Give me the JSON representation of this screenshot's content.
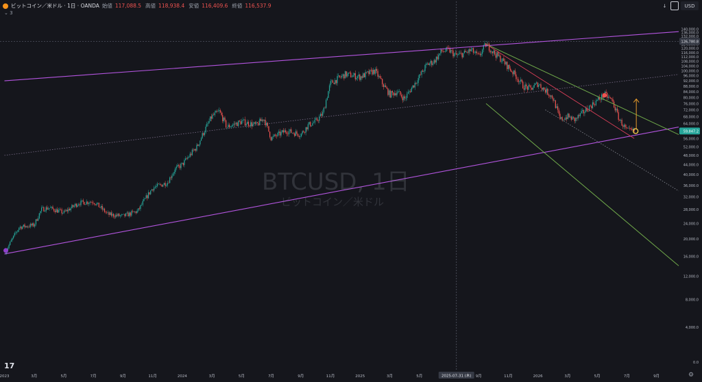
{
  "header": {
    "symbol_icon": "bitcoin-icon",
    "title": "ビットコイン／米ドル · 1日 · OANDA",
    "ohlc": [
      {
        "label": "始値",
        "value": "117,088.5"
      },
      {
        "label": "高値",
        "value": "118,938.4"
      },
      {
        "label": "安値",
        "value": "116,409.6"
      },
      {
        "label": "終値",
        "value": "116,537.9"
      }
    ],
    "indicator_count": "3"
  },
  "toolbar": {
    "arrow_icon": "arrow-down-icon",
    "box_icon": "square-icon",
    "currency": "USD"
  },
  "watermark": {
    "title": "BTCUSD, 1日",
    "subtitle": "ビットコイン／米ドル"
  },
  "logo": "17",
  "settings_icon": "gear-icon",
  "colors": {
    "bg": "#15161c",
    "up": "#26a69a",
    "down": "#ef5350",
    "channel": "#b455e0",
    "green_channel": "#6fa84a",
    "red_line": "#e0405a",
    "arrow": "#e79a2b"
  },
  "chart_data": {
    "type": "candlestick",
    "title": "BTCUSD, 1日",
    "y_scale": "log",
    "ylim": [
      0,
      144000
    ],
    "y_ticks": [
      0,
      4000,
      8000,
      12000,
      16000,
      20000,
      24000,
      28000,
      32000,
      36000,
      40000,
      44000,
      48000,
      52000,
      56000,
      60000,
      64000,
      68000,
      72000,
      76000,
      80000,
      84000,
      88000,
      92000,
      96000,
      100000,
      104000,
      108000,
      112000,
      116000,
      120000,
      124000,
      128000,
      132000,
      136000,
      140000
    ],
    "y_tick_labels": [
      "0.0",
      "4,000.0",
      "8,000.0",
      "12,000.0",
      "16,000.0",
      "20,000.0",
      "24,000.0",
      "28,000.0",
      "32,000.0",
      "36,000.0",
      "40,000.0",
      "44,000.0",
      "48,000.0",
      "52,000.0",
      "56,000.0",
      "60,000.0",
      "64,000.0",
      "68,000.0",
      "72,000.0",
      "76,000.0",
      "80,000.0",
      "84,000.0",
      "88,000.0",
      "92,000.0",
      "96,000.0",
      "100,000.0",
      "104,000.0",
      "108,000.0",
      "112,000.0",
      "116,000.0",
      "120,000.0",
      "124,000.0",
      "128,000.0",
      "132,000.0",
      "136,000.0",
      "140,000.0"
    ],
    "x_ticks": [
      {
        "t": 0,
        "label": "2023"
      },
      {
        "t": 4,
        "label": "3月"
      },
      {
        "t": 8,
        "label": "5月"
      },
      {
        "t": 12,
        "label": "7月"
      },
      {
        "t": 16,
        "label": "9月"
      },
      {
        "t": 20,
        "label": "11月"
      },
      {
        "t": 24,
        "label": "2024"
      },
      {
        "t": 28,
        "label": "3月"
      },
      {
        "t": 32,
        "label": "5月"
      },
      {
        "t": 36,
        "label": "7月"
      },
      {
        "t": 40,
        "label": "9月"
      },
      {
        "t": 44,
        "label": "11月"
      },
      {
        "t": 48,
        "label": "2025"
      },
      {
        "t": 52,
        "label": "3月"
      },
      {
        "t": 56,
        "label": "5月"
      },
      {
        "t": 64,
        "label": "9月"
      },
      {
        "t": 68,
        "label": "11月"
      },
      {
        "t": 72,
        "label": "2026"
      },
      {
        "t": 76,
        "label": "3月"
      },
      {
        "t": 80,
        "label": "5月"
      },
      {
        "t": 84,
        "label": "7月"
      },
      {
        "t": 88,
        "label": "9月"
      }
    ],
    "crosshair": {
      "t": 61,
      "label": "2025-07-31 (木)",
      "price": 126780.8,
      "price_label": "126,780.8"
    },
    "last_price": {
      "value": 59847.2,
      "label": "59,847.2"
    },
    "path": [
      [
        0,
        16500
      ],
      [
        2,
        23000
      ],
      [
        4,
        23500
      ],
      [
        5,
        28000
      ],
      [
        6,
        28500
      ],
      [
        8,
        27000
      ],
      [
        10,
        30000
      ],
      [
        12,
        30500
      ],
      [
        14,
        26500
      ],
      [
        16,
        26000
      ],
      [
        18,
        27500
      ],
      [
        20,
        35000
      ],
      [
        22,
        37000
      ],
      [
        23,
        42000
      ],
      [
        24,
        44000
      ],
      [
        26,
        52000
      ],
      [
        28,
        68000
      ],
      [
        29,
        71000
      ],
      [
        30,
        62000
      ],
      [
        32,
        65000
      ],
      [
        34,
        63000
      ],
      [
        35,
        67000
      ],
      [
        36,
        56000
      ],
      [
        38,
        60000
      ],
      [
        40,
        58000
      ],
      [
        41,
        63000
      ],
      [
        42,
        65000
      ],
      [
        43,
        70000
      ],
      [
        44,
        90000
      ],
      [
        46,
        97000
      ],
      [
        48,
        95000
      ],
      [
        50,
        100000
      ],
      [
        51,
        90000
      ],
      [
        52,
        82000
      ],
      [
        53,
        84000
      ],
      [
        54,
        79000
      ],
      [
        56,
        95000
      ],
      [
        57,
        105000
      ],
      [
        58,
        108000
      ],
      [
        59,
        117000
      ],
      [
        60,
        118000
      ],
      [
        61,
        113000
      ],
      [
        62,
        115000
      ],
      [
        63,
        118000
      ],
      [
        64,
        112000
      ],
      [
        65,
        124000
      ],
      [
        66,
        116000
      ],
      [
        67,
        110000
      ],
      [
        68,
        103000
      ],
      [
        69,
        96000
      ],
      [
        70,
        88000
      ],
      [
        71,
        86000
      ],
      [
        72,
        90000
      ],
      [
        73,
        85000
      ],
      [
        74,
        80000
      ],
      [
        75,
        66000
      ],
      [
        76,
        68000
      ],
      [
        77,
        66000
      ],
      [
        78,
        70000
      ],
      [
        79,
        74000
      ],
      [
        80,
        78000
      ],
      [
        81,
        82000
      ],
      [
        82,
        78000
      ],
      [
        83,
        66000
      ],
      [
        84,
        60000
      ],
      [
        85,
        59800
      ]
    ],
    "annotations": {
      "purple_channel_upper": [
        [
          0,
          92000
        ],
        [
          91,
          137000
        ]
      ],
      "purple_channel_lower": [
        [
          0,
          16500
        ],
        [
          91,
          62000
        ]
      ],
      "dotted_mid_1": [
        [
          0,
          48000
        ],
        [
          91,
          97000
        ]
      ],
      "green_channel_upper": [
        [
          65,
          124000
        ],
        [
          91,
          58000
        ]
      ],
      "green_channel_lower": [
        [
          65,
          76000
        ],
        [
          91,
          14000
        ]
      ],
      "red_trend": [
        [
          65,
          124000
        ],
        [
          85,
          56000
        ]
      ],
      "dotted_projection": [
        [
          73,
          72000
        ],
        [
          91,
          34000
        ]
      ],
      "arrow": [
        [
          85,
          60000
        ],
        [
          85,
          79000
        ]
      ],
      "origin_marker": [
        0,
        16500
      ],
      "red_dot": [
        81,
        81500
      ],
      "yellow_ring": [
        85,
        59800
      ]
    }
  }
}
